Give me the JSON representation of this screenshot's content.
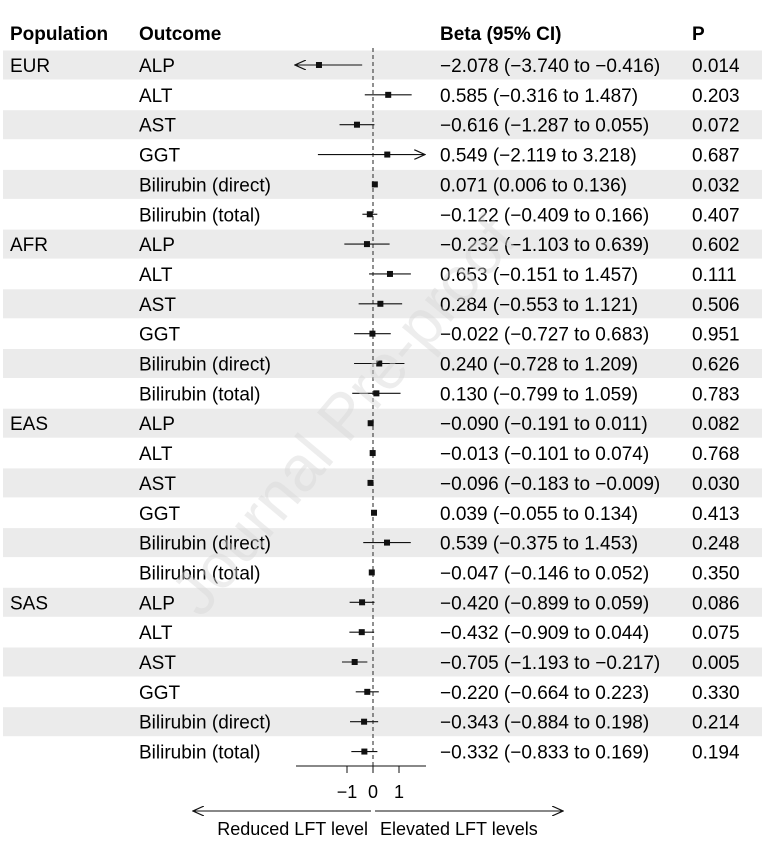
{
  "chart_data": {
    "type": "forest",
    "headers": {
      "population": "Population",
      "outcome": "Outcome",
      "beta": "Beta (95% CI)",
      "p": "P"
    },
    "xaxis": {
      "ticks": [
        -1,
        0,
        1
      ],
      "tick_labels": [
        "−1",
        "0",
        "1"
      ],
      "xlim": [
        -3.0,
        2.0
      ]
    },
    "reference_line": 0,
    "direction_labels": {
      "left": "Reduced LFT level",
      "right": "Elevated LFT levels"
    },
    "watermark": "Journal Pre-proof",
    "groups": [
      {
        "population": "EUR",
        "rows": [
          {
            "outcome": "ALP",
            "beta": -2.078,
            "lo": -3.74,
            "hi": -0.416,
            "ci_text": "−2.078 (−3.740 to −0.416)",
            "p": "0.014"
          },
          {
            "outcome": "ALT",
            "beta": 0.585,
            "lo": -0.316,
            "hi": 1.487,
            "ci_text": "0.585 (−0.316 to 1.487)",
            "p": "0.203"
          },
          {
            "outcome": "AST",
            "beta": -0.616,
            "lo": -1.287,
            "hi": 0.055,
            "ci_text": "−0.616 (−1.287 to 0.055)",
            "p": "0.072"
          },
          {
            "outcome": "GGT",
            "beta": 0.549,
            "lo": -2.119,
            "hi": 3.218,
            "ci_text": "0.549 (−2.119 to 3.218)",
            "p": "0.687"
          },
          {
            "outcome": "Bilirubin (direct)",
            "beta": 0.071,
            "lo": 0.006,
            "hi": 0.136,
            "ci_text": "0.071 (0.006 to 0.136)",
            "p": "0.032"
          },
          {
            "outcome": "Bilirubin (total)",
            "beta": -0.122,
            "lo": -0.409,
            "hi": 0.166,
            "ci_text": "−0.122 (−0.409 to 0.166)",
            "p": "0.407"
          }
        ]
      },
      {
        "population": "AFR",
        "rows": [
          {
            "outcome": "ALP",
            "beta": -0.232,
            "lo": -1.103,
            "hi": 0.639,
            "ci_text": "−0.232 (−1.103 to 0.639)",
            "p": "0.602"
          },
          {
            "outcome": "ALT",
            "beta": 0.653,
            "lo": -0.151,
            "hi": 1.457,
            "ci_text": "0.653 (−0.151 to 1.457)",
            "p": "0.111"
          },
          {
            "outcome": "AST",
            "beta": 0.284,
            "lo": -0.553,
            "hi": 1.121,
            "ci_text": "0.284 (−0.553 to 1.121)",
            "p": "0.506"
          },
          {
            "outcome": "GGT",
            "beta": -0.022,
            "lo": -0.727,
            "hi": 0.683,
            "ci_text": "−0.022 (−0.727 to 0.683)",
            "p": "0.951"
          },
          {
            "outcome": "Bilirubin (direct)",
            "beta": 0.24,
            "lo": -0.728,
            "hi": 1.209,
            "ci_text": "0.240 (−0.728 to 1.209)",
            "p": "0.626"
          },
          {
            "outcome": "Bilirubin (total)",
            "beta": 0.13,
            "lo": -0.799,
            "hi": 1.059,
            "ci_text": "0.130 (−0.799 to 1.059)",
            "p": "0.783"
          }
        ]
      },
      {
        "population": "EAS",
        "rows": [
          {
            "outcome": "ALP",
            "beta": -0.09,
            "lo": -0.191,
            "hi": 0.011,
            "ci_text": "−0.090 (−0.191 to 0.011)",
            "p": "0.082"
          },
          {
            "outcome": "ALT",
            "beta": -0.013,
            "lo": -0.101,
            "hi": 0.074,
            "ci_text": "−0.013 (−0.101 to 0.074)",
            "p": "0.768"
          },
          {
            "outcome": "AST",
            "beta": -0.096,
            "lo": -0.183,
            "hi": -0.009,
            "ci_text": "−0.096 (−0.183 to −0.009)",
            "p": "0.030"
          },
          {
            "outcome": "GGT",
            "beta": 0.039,
            "lo": -0.055,
            "hi": 0.134,
            "ci_text": "0.039 (−0.055 to 0.134)",
            "p": "0.413"
          },
          {
            "outcome": "Bilirubin (direct)",
            "beta": 0.539,
            "lo": -0.375,
            "hi": 1.453,
            "ci_text": "0.539 (−0.375 to 1.453)",
            "p": "0.248"
          },
          {
            "outcome": "Bilirubin (total)",
            "beta": -0.047,
            "lo": -0.146,
            "hi": 0.052,
            "ci_text": "−0.047 (−0.146 to 0.052)",
            "p": "0.350"
          }
        ]
      },
      {
        "population": "SAS",
        "rows": [
          {
            "outcome": "ALP",
            "beta": -0.42,
            "lo": -0.899,
            "hi": 0.059,
            "ci_text": "−0.420 (−0.899 to 0.059)",
            "p": "0.086"
          },
          {
            "outcome": "ALT",
            "beta": -0.432,
            "lo": -0.909,
            "hi": 0.044,
            "ci_text": "−0.432 (−0.909 to 0.044)",
            "p": "0.075"
          },
          {
            "outcome": "AST",
            "beta": -0.705,
            "lo": -1.193,
            "hi": -0.217,
            "ci_text": "−0.705 (−1.193 to −0.217)",
            "p": "0.005"
          },
          {
            "outcome": "GGT",
            "beta": -0.22,
            "lo": -0.664,
            "hi": 0.223,
            "ci_text": "−0.220 (−0.664 to 0.223)",
            "p": "0.330"
          },
          {
            "outcome": "Bilirubin (direct)",
            "beta": -0.343,
            "lo": -0.884,
            "hi": 0.198,
            "ci_text": "−0.343 (−0.884 to 0.198)",
            "p": "0.214"
          },
          {
            "outcome": "Bilirubin (total)",
            "beta": -0.332,
            "lo": -0.833,
            "hi": 0.169,
            "ci_text": "−0.332 (−0.833 to 0.169)",
            "p": "0.194"
          }
        ]
      }
    ]
  }
}
